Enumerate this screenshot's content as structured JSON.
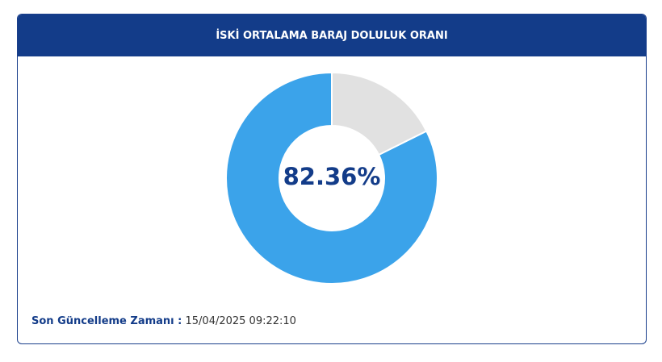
{
  "chart_data": {
    "type": "donut",
    "title": "İSKİ ORTALAMA BARAJ DOLULUK ORANI",
    "categories": [
      null,
      null
    ],
    "values": [
      82.36,
      17.64
    ],
    "value_labels": [
      "82.36%",
      null
    ],
    "colors": [
      "#3ba3ea",
      "#e1e1e1"
    ]
  },
  "footer": {
    "label": "Son Güncelleme Zamanı :",
    "timestamp": "15/04/2025 09:22:10"
  }
}
